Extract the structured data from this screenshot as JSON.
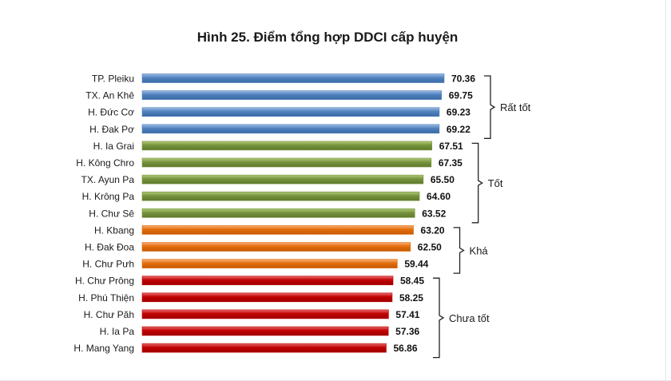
{
  "chart_data": {
    "type": "bar",
    "orientation": "horizontal",
    "title": "Hình 25. Điểm tổng hợp DDCI cấp huyện",
    "categories": [
      "TP. Pleiku",
      "TX. An Khê",
      "H. Đức Cơ",
      "H. Đak Pơ",
      "H. Ia Grai",
      "H. Kông Chro",
      "TX. Ayun Pa",
      "H. Krông Pa",
      "H. Chư Sê",
      "H. Kbang",
      "H. Đak Đoa",
      "H. Chư Pưh",
      "H. Chư Prông",
      "H. Phú Thiện",
      "H. Chư Păh",
      "H. Ia Pa",
      "H. Mang Yang"
    ],
    "values": [
      70.36,
      69.75,
      69.23,
      69.22,
      67.51,
      67.35,
      65.5,
      64.6,
      63.52,
      63.2,
      62.5,
      59.44,
      58.45,
      58.25,
      57.41,
      57.36,
      56.86
    ],
    "value_labels": [
      "70.36",
      "69.75",
      "69.23",
      "69.22",
      "67.51",
      "67.35",
      "65.50",
      "64.60",
      "63.52",
      "63.20",
      "62.50",
      "59.44",
      "58.45",
      "58.25",
      "57.41",
      "57.36",
      "56.86"
    ],
    "groups": [
      {
        "label": "Rất tốt",
        "start": 0,
        "end": 3,
        "color": "#4f81bd"
      },
      {
        "label": "Tốt",
        "start": 4,
        "end": 8,
        "color": "#77933c"
      },
      {
        "label": "Khá",
        "start": 9,
        "end": 11,
        "color": "#e36c0a"
      },
      {
        "label": "Chưa tốt",
        "start": 12,
        "end": 16,
        "color": "#c00000"
      }
    ],
    "xlim": [
      0,
      70.36
    ],
    "grid": false,
    "legend": "none"
  }
}
